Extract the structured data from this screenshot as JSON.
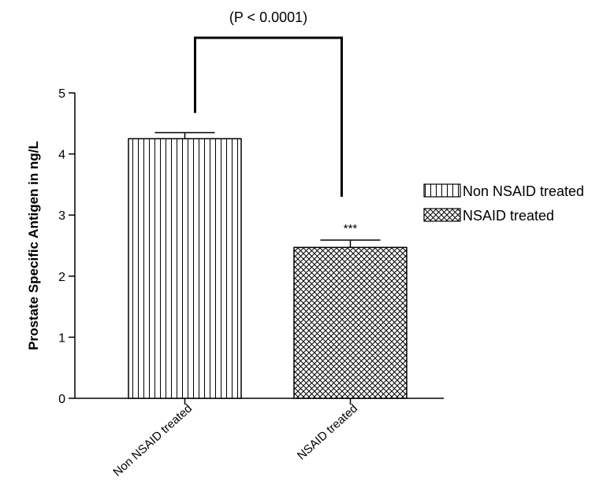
{
  "chart_data": {
    "type": "bar",
    "title": "",
    "xlabel": "",
    "ylabel": "Prostate Specific Antigen in ng/L",
    "ylim": [
      0,
      5
    ],
    "yticks": [
      0,
      1,
      2,
      3,
      4,
      5
    ],
    "categories": [
      "Non NSAID treated",
      "NSAID treated"
    ],
    "values": [
      4.25,
      2.47
    ],
    "errors": [
      0.1,
      0.12
    ],
    "patterns": [
      "vertical-lines",
      "crosshatch"
    ],
    "legend": {
      "position": "right",
      "entries": [
        "Non NSAID treated",
        "NSAID treated"
      ]
    },
    "annotations": {
      "comparison": "(P < 0.0001)",
      "significance": "***"
    },
    "grid": false
  }
}
